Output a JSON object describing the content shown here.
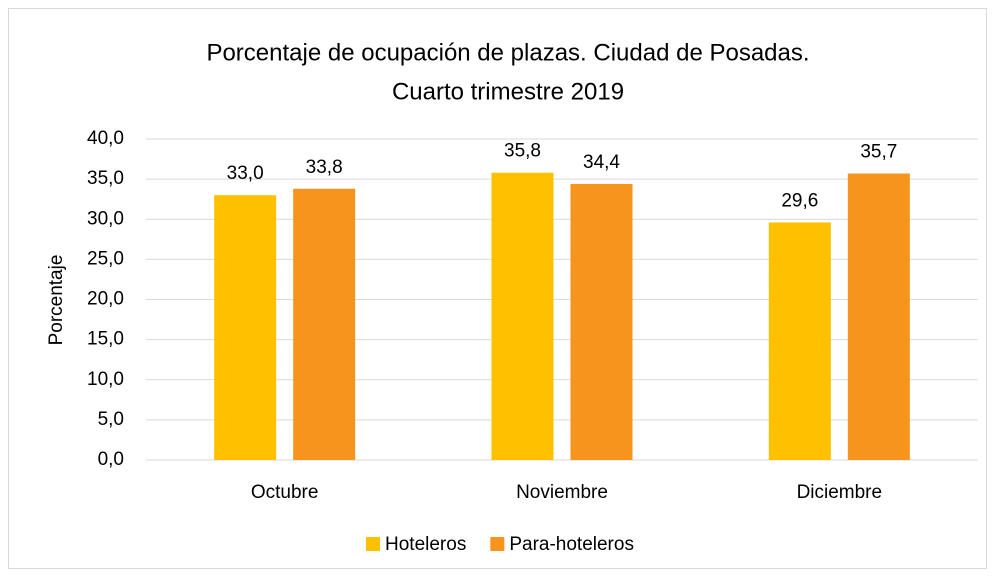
{
  "chart_data": {
    "type": "bar",
    "title": [
      "Porcentaje de ocupación de plazas. Ciudad de Posadas.",
      "Cuarto trimestre 2019"
    ],
    "ylabel": "Porcentaje",
    "categories": [
      "Octubre",
      "Noviembre",
      "Diciembre"
    ],
    "series": [
      {
        "name": "Hoteleros",
        "color": "#ffc000",
        "values": [
          33.0,
          35.8,
          29.6
        ],
        "value_labels": [
          "33,0",
          "35,8",
          "29,6"
        ]
      },
      {
        "name": "Para-hoteleros",
        "color": "#f7941d",
        "values": [
          33.8,
          34.4,
          35.7
        ],
        "value_labels": [
          "33,8",
          "34,4",
          "35,7"
        ]
      }
    ],
    "ylim": [
      0,
      40
    ],
    "yticks": [
      {
        "value": 0,
        "label": "0,0"
      },
      {
        "value": 5,
        "label": "5,0"
      },
      {
        "value": 10,
        "label": "10,0"
      },
      {
        "value": 15,
        "label": "15,0"
      },
      {
        "value": 20,
        "label": "20,0"
      },
      {
        "value": 25,
        "label": "25,0"
      },
      {
        "value": 30,
        "label": "30,0"
      },
      {
        "value": 35,
        "label": "35,0"
      },
      {
        "value": 40,
        "label": "40,0"
      }
    ],
    "grid": true,
    "legend": "bottom"
  }
}
